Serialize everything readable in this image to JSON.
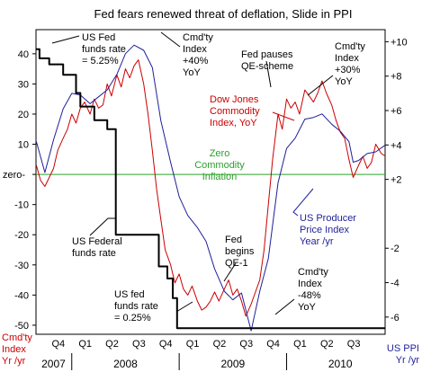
{
  "chart_data": {
    "type": "line",
    "title": "Fed fears renewed threat of deflation, Slide in PPI",
    "left_axis": {
      "label_lines": [
        "Cmd'ty",
        "Index",
        "Yr /yr"
      ],
      "ticks": [
        {
          "value": 40,
          "label": "40"
        },
        {
          "value": 30,
          "label": "30"
        },
        {
          "value": 20,
          "label": "20"
        },
        {
          "value": 10,
          "label": "10"
        },
        {
          "value": 0,
          "label": "zero-"
        },
        {
          "value": -10,
          "label": "-10"
        },
        {
          "value": -20,
          "label": "-20"
        },
        {
          "value": -30,
          "label": "-30"
        },
        {
          "value": -40,
          "label": "-40"
        },
        {
          "value": -50,
          "label": "-50"
        }
      ],
      "ylim": [
        -53,
        48
      ]
    },
    "right_axis": {
      "label_lines": [
        "US PPI",
        "Yr /yr"
      ],
      "ticks": [
        {
          "value": 10,
          "label": "+10"
        },
        {
          "value": 8,
          "label": "+8"
        },
        {
          "value": 6,
          "label": "+6"
        },
        {
          "value": 4,
          "label": "+4"
        },
        {
          "value": 2,
          "label": "+2"
        },
        {
          "value": -2,
          "label": "-2"
        },
        {
          "value": -4,
          "label": "-4"
        },
        {
          "value": -6,
          "label": "-6"
        }
      ],
      "ylim": [
        -7.0,
        10.7
      ]
    },
    "x_axis": {
      "range": [
        2007.667,
        2010.917
      ],
      "quarters": [
        {
          "x": 2007.875,
          "label": "Q4"
        },
        {
          "x": 2008.125,
          "label": "Q1"
        },
        {
          "x": 2008.375,
          "label": "Q2"
        },
        {
          "x": 2008.625,
          "label": "Q3"
        },
        {
          "x": 2008.875,
          "label": "Q4"
        },
        {
          "x": 2009.125,
          "label": "Q1"
        },
        {
          "x": 2009.375,
          "label": "Q2"
        },
        {
          "x": 2009.625,
          "label": "Q3"
        },
        {
          "x": 2009.875,
          "label": "Q4"
        },
        {
          "x": 2010.125,
          "label": "Q1"
        },
        {
          "x": 2010.375,
          "label": "Q2"
        },
        {
          "x": 2010.625,
          "label": "Q3"
        }
      ],
      "years": [
        {
          "x": 2007.83,
          "label": "2007"
        },
        {
          "x": 2008.5,
          "label": "2008"
        },
        {
          "x": 2009.5,
          "label": "2009"
        },
        {
          "x": 2010.5,
          "label": "2010"
        }
      ],
      "year_separators": [
        2008.0,
        2009.0,
        2010.0
      ]
    },
    "zero_line": {
      "value": 0,
      "color": "#2ca02c"
    },
    "series": [
      {
        "name": "Dow Jones Commodity Index, YoY",
        "axis": "left",
        "color": "#cc0000",
        "points": [
          [
            2007.67,
            3
          ],
          [
            2007.71,
            -2
          ],
          [
            2007.75,
            -4
          ],
          [
            2007.79,
            -1
          ],
          [
            2007.83,
            2
          ],
          [
            2007.87,
            8
          ],
          [
            2007.92,
            12
          ],
          [
            2007.96,
            15
          ],
          [
            2008.0,
            20
          ],
          [
            2008.04,
            17
          ],
          [
            2008.08,
            22
          ],
          [
            2008.12,
            24
          ],
          [
            2008.17,
            20
          ],
          [
            2008.21,
            25
          ],
          [
            2008.25,
            22
          ],
          [
            2008.29,
            23
          ],
          [
            2008.33,
            30
          ],
          [
            2008.37,
            26
          ],
          [
            2008.42,
            33
          ],
          [
            2008.46,
            29
          ],
          [
            2008.5,
            35
          ],
          [
            2008.54,
            32
          ],
          [
            2008.58,
            36
          ],
          [
            2008.62,
            38
          ],
          [
            2008.67,
            30
          ],
          [
            2008.71,
            20
          ],
          [
            2008.75,
            8
          ],
          [
            2008.79,
            -5
          ],
          [
            2008.83,
            -15
          ],
          [
            2008.87,
            -25
          ],
          [
            2008.92,
            -30
          ],
          [
            2008.96,
            -36
          ],
          [
            2009.0,
            -33
          ],
          [
            2009.04,
            -38
          ],
          [
            2009.08,
            -40
          ],
          [
            2009.12,
            -37
          ],
          [
            2009.17,
            -42
          ],
          [
            2009.21,
            -45
          ],
          [
            2009.25,
            -44
          ],
          [
            2009.29,
            -42
          ],
          [
            2009.33,
            -39
          ],
          [
            2009.37,
            -42
          ],
          [
            2009.42,
            -38
          ],
          [
            2009.46,
            -35
          ],
          [
            2009.5,
            -40
          ],
          [
            2009.54,
            -38
          ],
          [
            2009.58,
            -42
          ],
          [
            2009.62,
            -47
          ],
          [
            2009.67,
            -43
          ],
          [
            2009.71,
            -39
          ],
          [
            2009.75,
            -35
          ],
          [
            2009.79,
            -25
          ],
          [
            2009.83,
            -10
          ],
          [
            2009.87,
            5
          ],
          [
            2009.92,
            20
          ],
          [
            2009.96,
            15
          ],
          [
            2010.0,
            25
          ],
          [
            2010.04,
            22
          ],
          [
            2010.08,
            24
          ],
          [
            2010.12,
            20
          ],
          [
            2010.17,
            28
          ],
          [
            2010.21,
            26
          ],
          [
            2010.25,
            24
          ],
          [
            2010.29,
            27
          ],
          [
            2010.33,
            31
          ],
          [
            2010.37,
            27
          ],
          [
            2010.42,
            23
          ],
          [
            2010.46,
            18
          ],
          [
            2010.5,
            14
          ],
          [
            2010.54,
            12
          ],
          [
            2010.58,
            5
          ],
          [
            2010.62,
            -1
          ],
          [
            2010.67,
            3
          ],
          [
            2010.71,
            6
          ],
          [
            2010.75,
            2
          ],
          [
            2010.79,
            4
          ],
          [
            2010.83,
            10
          ],
          [
            2010.88,
            7
          ],
          [
            2010.92,
            6
          ]
        ]
      },
      {
        "name": "US Producer Price Index Year /yr",
        "axis": "right",
        "color": "#1f1f99",
        "points": [
          [
            2007.67,
            4.2
          ],
          [
            2007.75,
            2.4
          ],
          [
            2007.83,
            4.3
          ],
          [
            2007.92,
            6.1
          ],
          [
            2008.0,
            7.0
          ],
          [
            2008.08,
            6.9
          ],
          [
            2008.17,
            6.4
          ],
          [
            2008.25,
            6.8
          ],
          [
            2008.33,
            7.2
          ],
          [
            2008.42,
            8.1
          ],
          [
            2008.5,
            9.3
          ],
          [
            2008.58,
            9.8
          ],
          [
            2008.67,
            9.5
          ],
          [
            2008.75,
            8.5
          ],
          [
            2008.83,
            5.4
          ],
          [
            2008.92,
            3.0
          ],
          [
            2009.0,
            1.0
          ],
          [
            2009.08,
            -0.1
          ],
          [
            2009.17,
            -0.8
          ],
          [
            2009.25,
            -1.6
          ],
          [
            2009.33,
            -3.2
          ],
          [
            2009.42,
            -4.5
          ],
          [
            2009.5,
            -5.0
          ],
          [
            2009.58,
            -4.6
          ],
          [
            2009.67,
            -6.8
          ],
          [
            2009.75,
            -4.5
          ],
          [
            2009.83,
            -2.6
          ],
          [
            2009.92,
            1.8
          ],
          [
            2010.0,
            3.8
          ],
          [
            2010.08,
            4.4
          ],
          [
            2010.17,
            5.5
          ],
          [
            2010.25,
            5.6
          ],
          [
            2010.33,
            5.8
          ],
          [
            2010.42,
            5.2
          ],
          [
            2010.5,
            4.8
          ],
          [
            2010.58,
            4.2
          ],
          [
            2010.62,
            3.0
          ],
          [
            2010.67,
            3.1
          ],
          [
            2010.75,
            3.5
          ],
          [
            2010.83,
            3.6
          ],
          [
            2010.92,
            4.0
          ]
        ]
      },
      {
        "name": "US Federal funds rate",
        "axis": "left",
        "color": "#000000",
        "style": "step",
        "points": [
          [
            2007.67,
            41.5
          ],
          [
            2007.7,
            41.5
          ],
          [
            2007.7,
            38.5
          ],
          [
            2007.79,
            38.5
          ],
          [
            2007.79,
            36.5
          ],
          [
            2007.92,
            36.5
          ],
          [
            2007.92,
            33
          ],
          [
            2008.04,
            33
          ],
          [
            2008.04,
            27
          ],
          [
            2008.08,
            27
          ],
          [
            2008.08,
            22.5
          ],
          [
            2008.21,
            22.5
          ],
          [
            2008.21,
            18
          ],
          [
            2008.33,
            18
          ],
          [
            2008.33,
            15
          ],
          [
            2008.41,
            15
          ],
          [
            2008.41,
            -20
          ],
          [
            2008.81,
            -20
          ],
          [
            2008.81,
            -30.5
          ],
          [
            2008.89,
            -30.5
          ],
          [
            2008.89,
            -34.5
          ],
          [
            2008.94,
            -34.5
          ],
          [
            2008.94,
            -41
          ],
          [
            2008.98,
            -41
          ],
          [
            2008.98,
            -51
          ],
          [
            2010.92,
            -51
          ]
        ]
      }
    ],
    "annotations": [
      {
        "text_lines": [
          "US Fed",
          "funds rate",
          "= 5.25%"
        ],
        "color": "#000000"
      },
      {
        "text_lines": [
          "Cmd'ty",
          "Index",
          "+40%",
          "YoY"
        ],
        "color": "#000000"
      },
      {
        "text_lines": [
          "Fed pauses",
          "QE-scheme"
        ],
        "color": "#000000"
      },
      {
        "text_lines": [
          "Cmd'ty",
          "Index",
          "+30%",
          "YoY"
        ],
        "color": "#000000"
      },
      {
        "text_lines": [
          "Dow Jones",
          "Commodity",
          "Index, YoY"
        ],
        "color": "#cc0000"
      },
      {
        "text_lines": [
          "Zero",
          "Commodity",
          "Inflation"
        ],
        "color": "#2ca02c"
      },
      {
        "text_lines": [
          "US Producer",
          "Price Index",
          "Year /yr"
        ],
        "color": "#1f1f99"
      },
      {
        "text_lines": [
          "US Federal",
          "funds rate"
        ],
        "color": "#000000"
      },
      {
        "text_lines": [
          "Fed",
          "begins",
          "QE-1"
        ],
        "color": "#000000"
      },
      {
        "text_lines": [
          "Cmd'ty",
          "Index",
          "-48%",
          "YoY"
        ],
        "color": "#000000"
      },
      {
        "text_lines": [
          "US fed",
          "funds rate",
          "= 0.25%"
        ],
        "color": "#000000"
      }
    ]
  }
}
